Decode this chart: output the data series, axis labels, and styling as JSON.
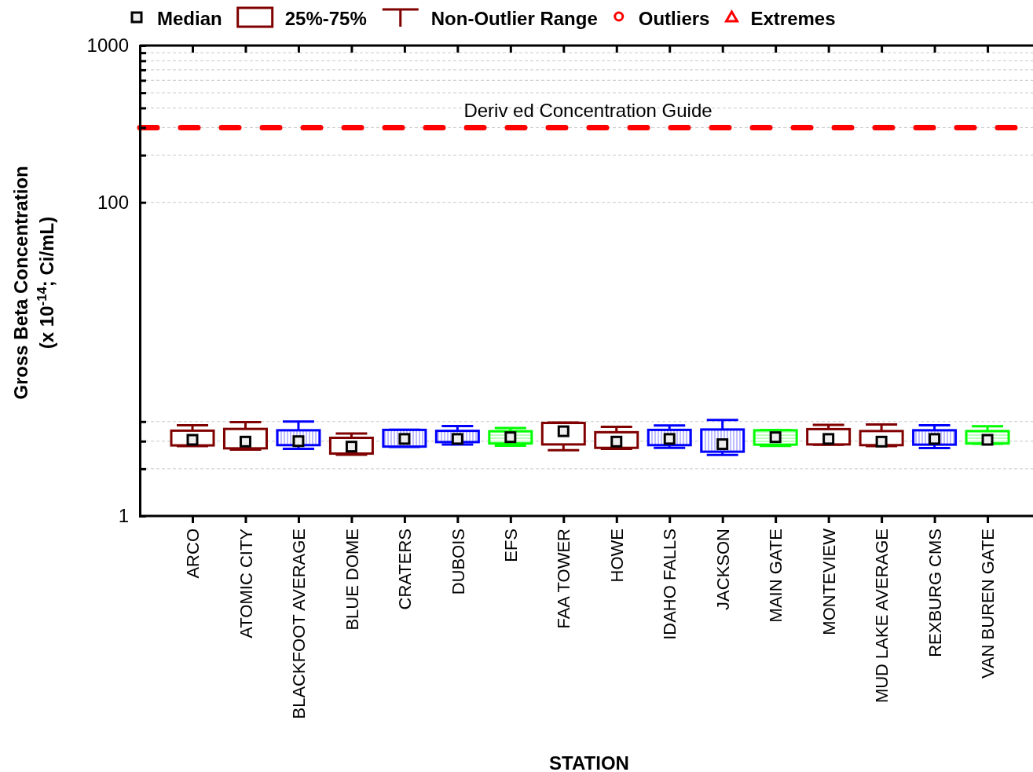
{
  "chart_data": {
    "type": "box",
    "xlabel": "STATION",
    "ylabel": "Gross Beta Concentration\n(x 10$^{-14}$; Ci/mL)",
    "categories": [
      "ARCO",
      "ATOMIC CITY",
      "BLACKFOOT AVERAGE",
      "BLUE DOME",
      "CRATERS",
      "DUBOIS",
      "EFS",
      "FAA TOWER",
      "HOWE",
      "IDAHO FALLS",
      "JACKSON",
      "MAIN GATE",
      "MONTEVIEW",
      "MUD LAKE AVERAGE",
      "REXBURG CMS",
      "VAN BUREN GATE"
    ],
    "colors": [
      "#800000",
      "#800000",
      "#0000ff",
      "#800000",
      "#0000ff",
      "#0000ff",
      "#00ff00",
      "#800000",
      "#800000",
      "#0000ff",
      "#0000ff",
      "#00ff00",
      "#800000",
      "#800000",
      "#0000ff",
      "#00ff00"
    ],
    "boxes": [
      {
        "low": 2.79,
        "q1": 2.82,
        "median": 3.06,
        "q3": 3.5,
        "high": 3.79
      },
      {
        "low": 2.65,
        "q1": 2.7,
        "median": 2.98,
        "q3": 3.59,
        "high": 3.97
      },
      {
        "low": 2.68,
        "q1": 2.83,
        "median": 3.0,
        "q3": 3.52,
        "high": 4.0
      },
      {
        "low": 2.46,
        "q1": 2.5,
        "median": 2.77,
        "q3": 3.15,
        "high": 3.36
      },
      {
        "low": 2.76,
        "q1": 2.77,
        "median": 3.1,
        "q3": 3.54,
        "high": 3.55
      },
      {
        "low": 2.86,
        "q1": 2.96,
        "median": 3.1,
        "q3": 3.49,
        "high": 3.75
      },
      {
        "low": 2.81,
        "q1": 2.9,
        "median": 3.18,
        "q3": 3.47,
        "high": 3.64
      },
      {
        "low": 2.63,
        "q1": 2.86,
        "median": 3.47,
        "q3": 3.92,
        "high": 3.94
      },
      {
        "low": 2.68,
        "q1": 2.72,
        "median": 2.98,
        "q3": 3.42,
        "high": 3.7
      },
      {
        "low": 2.72,
        "q1": 2.83,
        "median": 3.1,
        "q3": 3.54,
        "high": 3.78
      },
      {
        "low": 2.45,
        "q1": 2.57,
        "median": 2.87,
        "q3": 3.56,
        "high": 4.09
      },
      {
        "low": 2.8,
        "q1": 2.85,
        "median": 3.18,
        "q3": 3.52,
        "high": 3.53
      },
      {
        "low": 2.85,
        "q1": 2.86,
        "median": 3.1,
        "q3": 3.58,
        "high": 3.81
      },
      {
        "low": 2.79,
        "q1": 2.83,
        "median": 2.98,
        "q3": 3.48,
        "high": 3.83
      },
      {
        "low": 2.71,
        "q1": 2.85,
        "median": 3.1,
        "q3": 3.52,
        "high": 3.79
      },
      {
        "low": 2.89,
        "q1": 2.9,
        "median": 3.06,
        "q3": 3.48,
        "high": 3.73
      }
    ],
    "log": true,
    "ylim": [
      1,
      1000
    ],
    "yticks": [
      1,
      {
        "value": 2,
        "label": null
      },
      {
        "value": 3,
        "label": null
      },
      {
        "value": 4,
        "label": null
      },
      100,
      {
        "value": 200,
        "label": null
      },
      {
        "value": 300,
        "label": null
      },
      {
        "value": 400,
        "label": null
      },
      {
        "value": 500,
        "label": null
      },
      {
        "value": 600,
        "label": null
      },
      {
        "value": 700,
        "label": null
      },
      {
        "value": 800,
        "label": null
      },
      {
        "value": 900,
        "label": null
      },
      1000
    ],
    "grid": "y",
    "ref_lines": [
      {
        "axis": "y",
        "value": 300,
        "label": "Deriv ed Concentration Guide",
        "color": "#ff0000",
        "line_style": "dashed"
      }
    ],
    "annotations": [
      "Median",
      "25%-75%",
      "Non-Outlier Range",
      "Outliers",
      "Extremes"
    ]
  }
}
